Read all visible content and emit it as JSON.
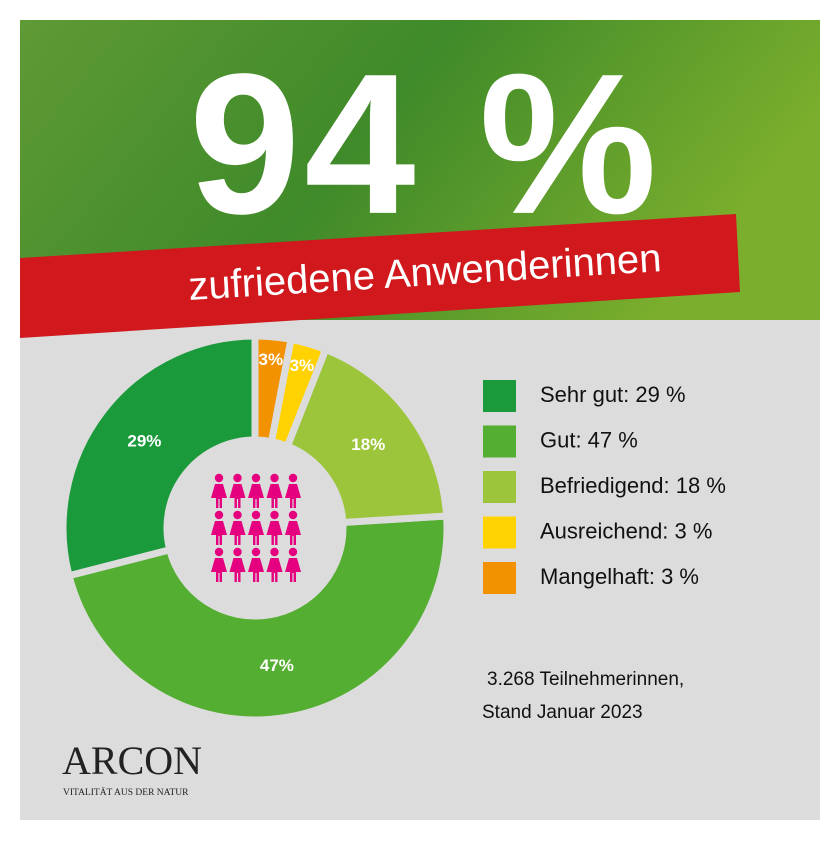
{
  "chart_data": {
    "type": "pie",
    "headline": "94 %",
    "subtitle": "zufriedene Anwenderinnen",
    "categories": [
      "Sehr gut: 29 %",
      "Gut: 47 %",
      "Befriedigend: 18 %",
      "Ausreichend: 3 %",
      "Mangelhaft: 3 %"
    ],
    "values": [
      29,
      47,
      18,
      3,
      3
    ],
    "value_labels": [
      "29%",
      "47%",
      "18%",
      "3%",
      "3%"
    ],
    "colors": [
      "#1b9a3c",
      "#54ae32",
      "#9dc53b",
      "#ffd200",
      "#f39200"
    ],
    "note": [
      "3.268  Teilnehmerinnen,",
      "Stand Januar 2023"
    ],
    "brand": "ARCON",
    "tagline": "VITALITÄT AUS DER NATUR"
  }
}
